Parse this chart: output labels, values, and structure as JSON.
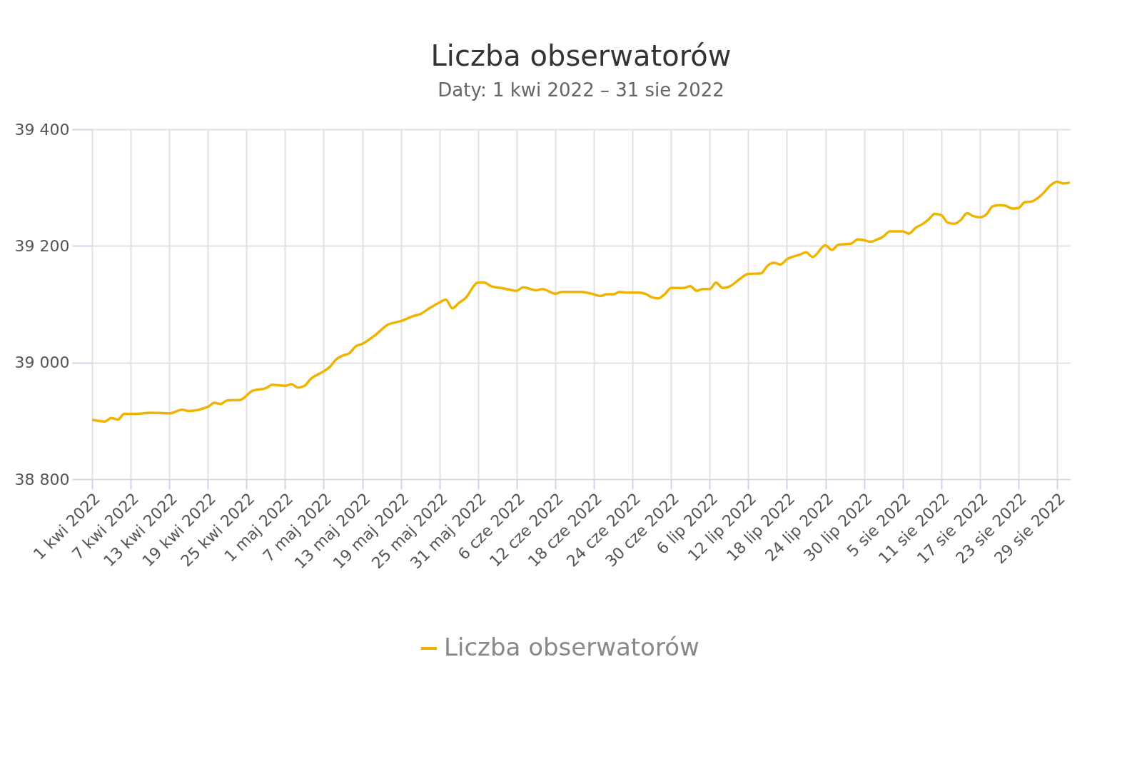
{
  "chart_data": {
    "type": "line",
    "title": "Liczba obserwatorów",
    "subtitle": "Daty: 1 kwi 2022 – 31 sie 2022",
    "x": [
      "2022-04-01",
      "2022-04-03",
      "2022-04-04",
      "2022-04-05",
      "2022-04-06",
      "2022-04-08",
      "2022-04-10",
      "2022-04-13",
      "2022-04-15",
      "2022-04-16",
      "2022-04-19",
      "2022-04-20",
      "2022-04-21",
      "2022-04-22",
      "2022-04-24",
      "2022-04-26",
      "2022-04-28",
      "2022-04-29",
      "2022-05-01",
      "2022-05-02",
      "2022-05-03",
      "2022-05-04",
      "2022-05-05",
      "2022-05-07",
      "2022-05-08",
      "2022-05-09",
      "2022-05-10",
      "2022-05-11",
      "2022-05-12",
      "2022-05-13",
      "2022-05-15",
      "2022-05-17",
      "2022-05-19",
      "2022-05-21",
      "2022-05-22",
      "2022-05-23",
      "2022-05-25",
      "2022-05-26",
      "2022-05-27",
      "2022-05-28",
      "2022-05-29",
      "2022-05-31",
      "2022-06-01",
      "2022-06-02",
      "2022-06-04",
      "2022-06-06",
      "2022-06-07",
      "2022-06-09",
      "2022-06-10",
      "2022-06-12",
      "2022-06-13",
      "2022-06-16",
      "2022-06-18",
      "2022-06-19",
      "2022-06-20",
      "2022-06-21",
      "2022-06-22",
      "2022-06-23",
      "2022-06-25",
      "2022-06-26",
      "2022-06-27",
      "2022-06-28",
      "2022-06-29",
      "2022-06-30",
      "2022-07-02",
      "2022-07-03",
      "2022-07-04",
      "2022-07-05",
      "2022-07-06",
      "2022-07-07",
      "2022-07-08",
      "2022-07-09",
      "2022-07-11",
      "2022-07-12",
      "2022-07-14",
      "2022-07-15",
      "2022-07-16",
      "2022-07-17",
      "2022-07-18",
      "2022-07-20",
      "2022-07-21",
      "2022-07-22",
      "2022-07-24",
      "2022-07-25",
      "2022-07-26",
      "2022-07-28",
      "2022-07-29",
      "2022-07-30",
      "2022-07-31",
      "2022-08-01",
      "2022-08-02",
      "2022-08-03",
      "2022-08-05",
      "2022-08-06",
      "2022-08-07",
      "2022-08-08",
      "2022-08-09",
      "2022-08-10",
      "2022-08-11",
      "2022-08-12",
      "2022-08-13",
      "2022-08-14",
      "2022-08-15",
      "2022-08-16",
      "2022-08-17",
      "2022-08-18",
      "2022-08-19",
      "2022-08-20",
      "2022-08-21",
      "2022-08-22",
      "2022-08-23",
      "2022-08-24",
      "2022-08-25",
      "2022-08-26",
      "2022-08-27",
      "2022-08-28",
      "2022-08-29",
      "2022-08-30",
      "2022-08-31"
    ],
    "series": [
      {
        "name": "Liczba obserwatorów",
        "color": "#f0b400",
        "values": [
          38902,
          38899,
          38905,
          38902,
          38912,
          38912,
          38914,
          38913,
          38919,
          38917,
          38924,
          38931,
          38929,
          38935,
          38936,
          38952,
          38956,
          38962,
          38960,
          38963,
          38957,
          38960,
          38972,
          38985,
          38993,
          39006,
          39012,
          39016,
          39028,
          39032,
          39047,
          39065,
          39071,
          39080,
          39083,
          39090,
          39103,
          39108,
          39093,
          39102,
          39110,
          39137,
          39137,
          39131,
          39127,
          39123,
          39129,
          39124,
          39126,
          39118,
          39121,
          39121,
          39117,
          39114,
          39117,
          39117,
          39121,
          39120,
          39120,
          39118,
          39112,
          39110,
          39117,
          39128,
          39128,
          39131,
          39123,
          39126,
          39126,
          39137,
          39128,
          39130,
          39146,
          39152,
          39153,
          39166,
          39171,
          39168,
          39177,
          39185,
          39189,
          39181,
          39201,
          39193,
          39202,
          39204,
          39211,
          39210,
          39207,
          39211,
          39216,
          39225,
          39225,
          39221,
          39231,
          39237,
          39245,
          39255,
          39253,
          39240,
          39238,
          39244,
          39256,
          39251,
          39249,
          39254,
          39268,
          39270,
          39269,
          39264,
          39265,
          39275,
          39276,
          39282,
          39292,
          39304,
          39310,
          39307,
          39309
        ]
      }
    ],
    "xlim": [
      "2022-04-01",
      "2022-08-31"
    ],
    "xticks": [
      {
        "value": "2022-04-01",
        "label": "1 kwi 2022"
      },
      {
        "value": "2022-04-07",
        "label": "7 kwi 2022"
      },
      {
        "value": "2022-04-13",
        "label": "13 kwi 2022"
      },
      {
        "value": "2022-04-19",
        "label": "19 kwi 2022"
      },
      {
        "value": "2022-04-25",
        "label": "25 kwi 2022"
      },
      {
        "value": "2022-05-01",
        "label": "1 maj 2022"
      },
      {
        "value": "2022-05-07",
        "label": "7 maj 2022"
      },
      {
        "value": "2022-05-13",
        "label": "13 maj 2022"
      },
      {
        "value": "2022-05-19",
        "label": "19 maj 2022"
      },
      {
        "value": "2022-05-25",
        "label": "25 maj 2022"
      },
      {
        "value": "2022-05-31",
        "label": "31 maj 2022"
      },
      {
        "value": "2022-06-06",
        "label": "6 cze 2022"
      },
      {
        "value": "2022-06-12",
        "label": "12 cze 2022"
      },
      {
        "value": "2022-06-18",
        "label": "18 cze 2022"
      },
      {
        "value": "2022-06-24",
        "label": "24 cze 2022"
      },
      {
        "value": "2022-06-30",
        "label": "30 cze 2022"
      },
      {
        "value": "2022-07-06",
        "label": "6 lip 2022"
      },
      {
        "value": "2022-07-12",
        "label": "12 lip 2022"
      },
      {
        "value": "2022-07-18",
        "label": "18 lip 2022"
      },
      {
        "value": "2022-07-24",
        "label": "24 lip 2022"
      },
      {
        "value": "2022-07-30",
        "label": "30 lip 2022"
      },
      {
        "value": "2022-08-05",
        "label": "5 sie 2022"
      },
      {
        "value": "2022-08-11",
        "label": "11 sie 2022"
      },
      {
        "value": "2022-08-17",
        "label": "17 sie 2022"
      },
      {
        "value": "2022-08-23",
        "label": "23 sie 2022"
      },
      {
        "value": "2022-08-29",
        "label": "29 sie 2022"
      }
    ],
    "ylim": [
      38800,
      39400
    ],
    "yticks": [
      {
        "value": 38800,
        "label": "38 800"
      },
      {
        "value": 39000,
        "label": "39 000"
      },
      {
        "value": 39200,
        "label": "39 200"
      },
      {
        "value": 39400,
        "label": "39 400"
      }
    ],
    "grid": true,
    "legend": "bottom"
  }
}
